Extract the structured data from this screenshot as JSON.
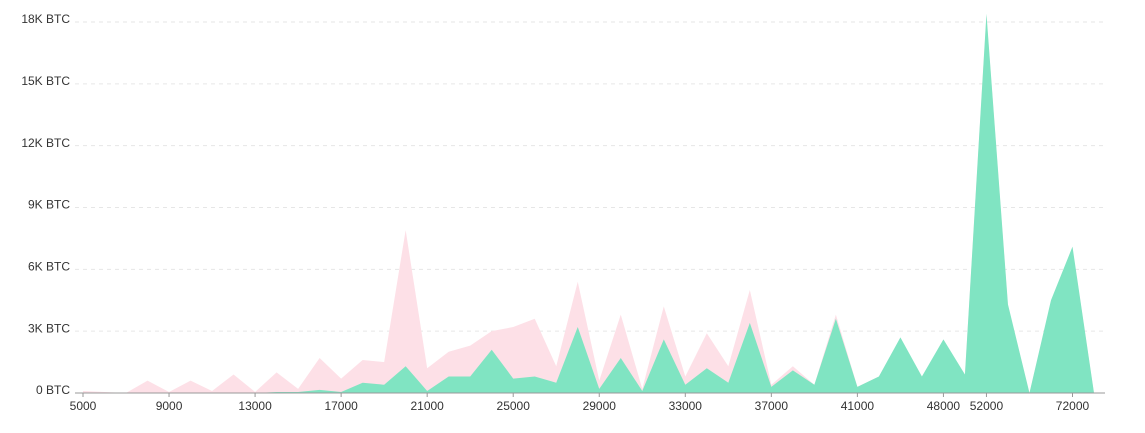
{
  "chart_data": {
    "type": "area",
    "categories": [
      "5000",
      null,
      null,
      null,
      "9000",
      null,
      null,
      null,
      "13000",
      null,
      null,
      null,
      "17000",
      null,
      null,
      null,
      "21000",
      null,
      null,
      null,
      "25000",
      null,
      null,
      null,
      "29000",
      null,
      null,
      null,
      "33000",
      null,
      null,
      null,
      "37000",
      null,
      null,
      null,
      "41000",
      null,
      null,
      null,
      "48000",
      null,
      "52000",
      null,
      null,
      null,
      "72000",
      null
    ],
    "series": [
      {
        "color": "#fde0e7",
        "values": [
          0.1,
          0.05,
          0,
          0.6,
          0.05,
          0.6,
          0.1,
          0.9,
          0.05,
          1.0,
          0.2,
          1.7,
          0.7,
          1.6,
          1.5,
          7.9,
          1.2,
          2.0,
          2.3,
          3.0,
          3.2,
          3.6,
          1.3,
          5.4,
          0.6,
          3.8,
          0.2,
          4.2,
          0.8,
          2.9,
          1.3,
          5.0,
          0.4,
          1.3,
          0.4,
          3.8,
          0.3,
          0.8,
          2.6,
          0.8,
          2.5,
          0.9,
          18.3,
          4.2,
          0,
          4.4,
          7.0,
          0
        ]
      },
      {
        "color": "#80e4c2",
        "values": [
          0,
          0,
          0,
          0,
          0,
          0,
          0,
          0,
          0,
          0.05,
          0.05,
          0.15,
          0.05,
          0.5,
          0.4,
          1.3,
          0.1,
          0.8,
          0.8,
          2.1,
          0.7,
          0.8,
          0.5,
          3.2,
          0.2,
          1.7,
          0.1,
          2.6,
          0.4,
          1.2,
          0.5,
          3.4,
          0.3,
          1.1,
          0.4,
          3.6,
          0.3,
          0.8,
          2.7,
          0.8,
          2.6,
          0.9,
          18.4,
          4.3,
          0,
          4.5,
          7.1,
          0
        ]
      }
    ],
    "ylim": [
      0,
      18
    ],
    "yticks": [
      {
        "value": 0,
        "label": "0 BTC"
      },
      {
        "value": 3,
        "label": "3K BTC"
      },
      {
        "value": 6,
        "label": "6K BTC"
      },
      {
        "value": 9,
        "label": "9K BTC"
      },
      {
        "value": 12,
        "label": "12K BTC"
      },
      {
        "value": 15,
        "label": "15K BTC"
      },
      {
        "value": 18,
        "label": "18K BTC"
      }
    ],
    "grid": true
  }
}
